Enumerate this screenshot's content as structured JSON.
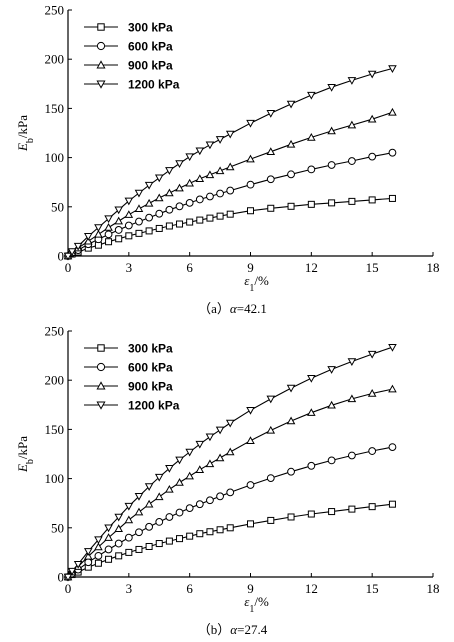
{
  "chart_data": [
    {
      "type": "line",
      "caption_prefix": "（a）",
      "caption_symbol": "α",
      "caption_value": "=42.1",
      "xlabel_symbol": "ε",
      "xlabel_sub": "1",
      "xlabel_unit": "/%",
      "ylabel_symbol": "E",
      "ylabel_sub": "b",
      "ylabel_unit": "/kPa",
      "xlim": [
        0,
        18
      ],
      "ylim": [
        0,
        250
      ],
      "xticks": [
        0,
        3,
        6,
        9,
        12,
        15,
        18
      ],
      "yticks": [
        0,
        50,
        100,
        150,
        200,
        250
      ],
      "legend_position": "top-left",
      "grid": false,
      "series": [
        {
          "name": "300 kPa",
          "marker": "square",
          "x": [
            0,
            0.2,
            0.5,
            1,
            1.5,
            2,
            2.5,
            3,
            3.5,
            4,
            4.5,
            5,
            5.5,
            6,
            6.5,
            7,
            7.5,
            8,
            9,
            10,
            11,
            12,
            13,
            14,
            15,
            16
          ],
          "y": [
            0,
            2,
            4,
            8,
            11,
            14.5,
            17.5,
            20.5,
            23,
            25.5,
            28,
            30.5,
            32.5,
            34.5,
            36.5,
            38.5,
            40.5,
            42.5,
            46,
            48.5,
            50.5,
            52.5,
            54,
            55.5,
            57,
            58.5
          ]
        },
        {
          "name": "600 kPa",
          "marker": "circle",
          "x": [
            0,
            0.2,
            0.5,
            1,
            1.5,
            2,
            2.5,
            3,
            3.5,
            4,
            4.5,
            5,
            5.5,
            6,
            6.5,
            7,
            7.5,
            8,
            9,
            10,
            11,
            12,
            13,
            14,
            15,
            16
          ],
          "y": [
            0,
            3,
            6,
            12,
            17,
            22,
            26.5,
            31,
            35,
            39,
            43,
            47,
            50.5,
            54,
            57.5,
            60.5,
            63.5,
            66.5,
            72.5,
            78,
            83,
            88,
            92.5,
            96.5,
            101,
            105
          ]
        },
        {
          "name": "900 kPa",
          "marker": "triangle-up",
          "x": [
            0,
            0.2,
            0.5,
            1,
            1.5,
            2,
            2.5,
            3,
            3.5,
            4,
            4.5,
            5,
            5.5,
            6,
            6.5,
            7,
            7.5,
            8,
            9,
            10,
            11,
            12,
            13,
            14,
            15,
            16
          ],
          "y": [
            0,
            3.5,
            8,
            15,
            22,
            29,
            35.5,
            42,
            48,
            53.5,
            59,
            64,
            69,
            74,
            78.5,
            82.5,
            86.5,
            90.5,
            98.5,
            106,
            113.5,
            120.5,
            127,
            133,
            139,
            146
          ]
        },
        {
          "name": "1200 kPa",
          "marker": "triangle-down",
          "x": [
            0,
            0.2,
            0.5,
            1,
            1.5,
            2,
            2.5,
            3,
            3.5,
            4,
            4.5,
            5,
            5.5,
            6,
            6.5,
            7,
            7.5,
            8,
            9,
            10,
            11,
            12,
            13,
            14,
            15,
            16
          ],
          "y": [
            0,
            4.5,
            10,
            20,
            29,
            38,
            47,
            56,
            64,
            72,
            79.5,
            87,
            94,
            101,
            107,
            113,
            118.5,
            124,
            135,
            145,
            154.5,
            163.5,
            171.5,
            178.5,
            185,
            190.5
          ]
        }
      ]
    },
    {
      "type": "line",
      "caption_prefix": "（b）",
      "caption_symbol": "α",
      "caption_value": "=27.4",
      "xlabel_symbol": "ε",
      "xlabel_sub": "1",
      "xlabel_unit": "/%",
      "ylabel_symbol": "E",
      "ylabel_sub": "b",
      "ylabel_unit": "/kPa",
      "xlim": [
        0,
        18
      ],
      "ylim": [
        0,
        250
      ],
      "xticks": [
        0,
        3,
        6,
        9,
        12,
        15,
        18
      ],
      "yticks": [
        0,
        50,
        100,
        150,
        200,
        250
      ],
      "legend_position": "top-left",
      "grid": false,
      "series": [
        {
          "name": "300 kPa",
          "marker": "square",
          "x": [
            0,
            0.2,
            0.5,
            1,
            1.5,
            2,
            2.5,
            3,
            3.5,
            4,
            4.5,
            5,
            5.5,
            6,
            6.5,
            7,
            7.5,
            8,
            9,
            10,
            11,
            12,
            13,
            14,
            15,
            16
          ],
          "y": [
            0,
            2.5,
            5,
            10,
            14,
            18,
            21.5,
            25,
            28,
            31,
            34,
            36.5,
            39,
            41.5,
            44,
            46,
            48,
            50,
            54,
            57.5,
            61,
            64,
            66.5,
            69,
            71.5,
            74
          ]
        },
        {
          "name": "600 kPa",
          "marker": "circle",
          "x": [
            0,
            0.2,
            0.5,
            1,
            1.5,
            2,
            2.5,
            3,
            3.5,
            4,
            4.5,
            5,
            5.5,
            6,
            6.5,
            7,
            7.5,
            8,
            9,
            10,
            11,
            12,
            13,
            14,
            15,
            16
          ],
          "y": [
            0,
            3.5,
            7.5,
            15,
            21.5,
            28,
            34,
            40,
            45.5,
            51,
            56,
            61,
            65.5,
            70,
            74,
            78,
            82,
            86,
            93.5,
            100.5,
            107,
            113,
            118.5,
            123.5,
            128,
            132
          ]
        },
        {
          "name": "900 kPa",
          "marker": "triangle-up",
          "x": [
            0,
            0.2,
            0.5,
            1,
            1.5,
            2,
            2.5,
            3,
            3.5,
            4,
            4.5,
            5,
            5.5,
            6,
            6.5,
            7,
            7.5,
            8,
            9,
            10,
            11,
            12,
            13,
            14,
            15,
            16
          ],
          "y": [
            0,
            5,
            10.5,
            21,
            30.5,
            40,
            49,
            58,
            66,
            74,
            81.5,
            89,
            96,
            102.5,
            109,
            115,
            121,
            127,
            138.5,
            149,
            158.5,
            167,
            174.5,
            181,
            186.5,
            191
          ]
        },
        {
          "name": "1200 kPa",
          "marker": "triangle-down",
          "x": [
            0,
            0.2,
            0.5,
            1,
            1.5,
            2,
            2.5,
            3,
            3.5,
            4,
            4.5,
            5,
            5.5,
            6,
            6.5,
            7,
            7.5,
            8,
            9,
            10,
            11,
            12,
            13,
            14,
            15,
            16
          ],
          "y": [
            0,
            6,
            13,
            26,
            38,
            50,
            61,
            72,
            82,
            92,
            101.5,
            110.5,
            119,
            127,
            135,
            142.5,
            149.5,
            156.5,
            169.5,
            181,
            192,
            202,
            211,
            219,
            226.5,
            233.5
          ]
        }
      ]
    }
  ]
}
